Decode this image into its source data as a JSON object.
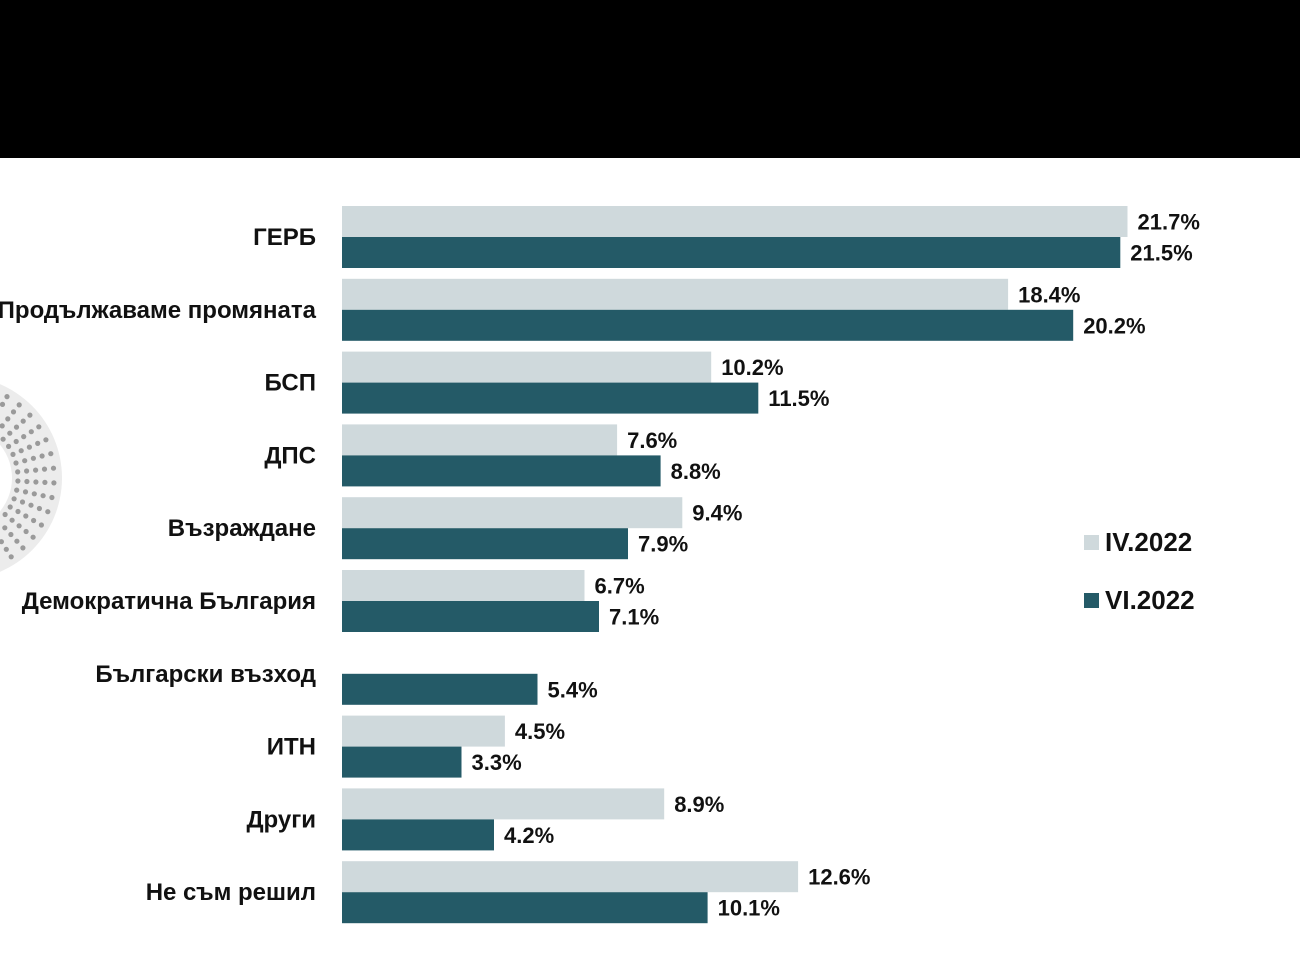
{
  "chart_data": {
    "type": "bar",
    "orientation": "horizontal",
    "categories": [
      "ГЕРБ",
      "Продължаваме промяната",
      "БСП",
      "ДПС",
      "Възраждане",
      "Демократична България",
      "Български възход",
      "ИТН",
      "Други",
      "Не съм решил"
    ],
    "series": [
      {
        "name": "IV.2022",
        "color": "#cfd9dc",
        "values": [
          21.7,
          18.4,
          10.2,
          7.6,
          9.4,
          6.7,
          null,
          4.5,
          8.9,
          12.6
        ],
        "labels": [
          "21.7%",
          "18.4%",
          "10.2%",
          "7.6%",
          "9.4%",
          "6.7%",
          "",
          "4.5%",
          "8.9%",
          "12.6%"
        ]
      },
      {
        "name": "VI.2022",
        "color": "#245a67",
        "values": [
          21.5,
          20.2,
          11.5,
          8.8,
          7.9,
          7.1,
          5.4,
          3.3,
          4.2,
          10.1
        ],
        "labels": [
          "21.5%",
          "20.2%",
          "11.5%",
          "8.8%",
          "7.9%",
          "7.1%",
          "5.4%",
          "3.3%",
          "4.2%",
          "10.1%"
        ]
      }
    ],
    "xlim": [
      0,
      22.5
    ],
    "grid": false,
    "legend_position": "right"
  },
  "legend": {
    "items": [
      "IV.2022",
      "VI.2022"
    ]
  }
}
